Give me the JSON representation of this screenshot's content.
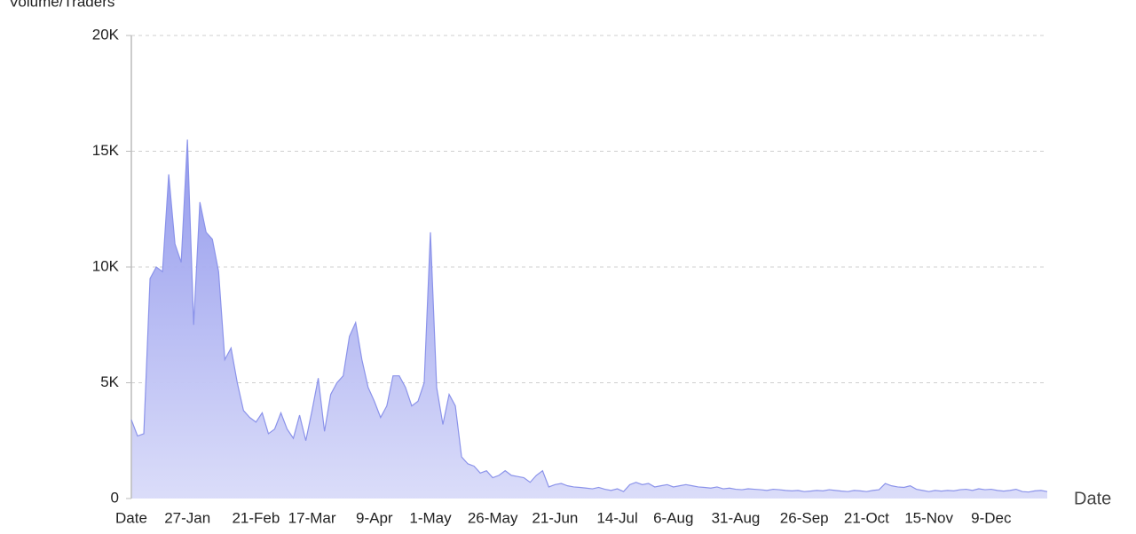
{
  "chart_data": {
    "type": "area",
    "x_label": "Date",
    "y_label": "Volume/Traders",
    "color": "#8b93ea",
    "grid": true,
    "ylim": [
      0,
      20000
    ],
    "yticks": [
      0,
      {
        "value": 5000,
        "label": "5K"
      },
      {
        "value": 10000,
        "label": "10K"
      },
      {
        "value": 15000,
        "label": "15K"
      },
      {
        "value": 20000,
        "label": "20K"
      }
    ],
    "categories": [
      "Date",
      null,
      null,
      null,
      null,
      null,
      null,
      null,
      null,
      "27-Jan",
      null,
      null,
      null,
      null,
      null,
      null,
      null,
      null,
      null,
      null,
      "21-Feb",
      null,
      null,
      null,
      null,
      null,
      null,
      null,
      null,
      "17-Mar",
      null,
      null,
      null,
      null,
      null,
      null,
      null,
      null,
      null,
      "9-Apr",
      null,
      null,
      null,
      null,
      null,
      null,
      null,
      null,
      "1-May",
      null,
      null,
      null,
      null,
      null,
      null,
      null,
      null,
      null,
      "26-May",
      null,
      null,
      null,
      null,
      null,
      null,
      null,
      null,
      null,
      "21-Jun",
      null,
      null,
      null,
      null,
      null,
      null,
      null,
      null,
      null,
      "14-Jul",
      null,
      null,
      null,
      null,
      null,
      null,
      null,
      null,
      "6-Aug",
      null,
      null,
      null,
      null,
      null,
      null,
      null,
      null,
      null,
      "31-Aug",
      null,
      null,
      null,
      null,
      null,
      null,
      null,
      null,
      null,
      null,
      "26-Sep",
      null,
      null,
      null,
      null,
      null,
      null,
      null,
      null,
      null,
      "21-Oct",
      null,
      null,
      null,
      null,
      null,
      null,
      null,
      null,
      null,
      "15-Nov",
      null,
      null,
      null,
      null,
      null,
      null,
      null,
      null,
      null,
      "9-Dec",
      null,
      null,
      null,
      null,
      null,
      null,
      null,
      null,
      null
    ],
    "values": [
      3400,
      2700,
      2800,
      9500,
      10000,
      9800,
      14000,
      11000,
      10200,
      15500,
      7500,
      12800,
      11500,
      11200,
      9800,
      6000,
      6500,
      5000,
      3800,
      3500,
      3300,
      3700,
      2800,
      3000,
      3700,
      3000,
      2600,
      3600,
      2500,
      3800,
      5200,
      2900,
      4500,
      5000,
      5300,
      7000,
      7600,
      6000,
      4800,
      4200,
      3500,
      4000,
      5300,
      5300,
      4800,
      4000,
      4200,
      5000,
      11500,
      4800,
      3200,
      4500,
      4000,
      1800,
      1500,
      1400,
      1100,
      1200,
      900,
      1000,
      1200,
      1000,
      950,
      900,
      700,
      1000,
      1200,
      500,
      600,
      650,
      550,
      500,
      480,
      450,
      420,
      480,
      400,
      350,
      420,
      300,
      600,
      700,
      600,
      650,
      500,
      550,
      600,
      500,
      550,
      600,
      550,
      500,
      480,
      450,
      500,
      420,
      450,
      400,
      380,
      420,
      400,
      380,
      350,
      400,
      380,
      350,
      330,
      350,
      300,
      320,
      350,
      330,
      380,
      350,
      320,
      300,
      350,
      330,
      300,
      350,
      380,
      650,
      550,
      500,
      480,
      550,
      400,
      350,
      300,
      350,
      320,
      350,
      330,
      380,
      400,
      350,
      420,
      380,
      400,
      350,
      320,
      350,
      400,
      300,
      280,
      330,
      350,
      300
    ]
  }
}
